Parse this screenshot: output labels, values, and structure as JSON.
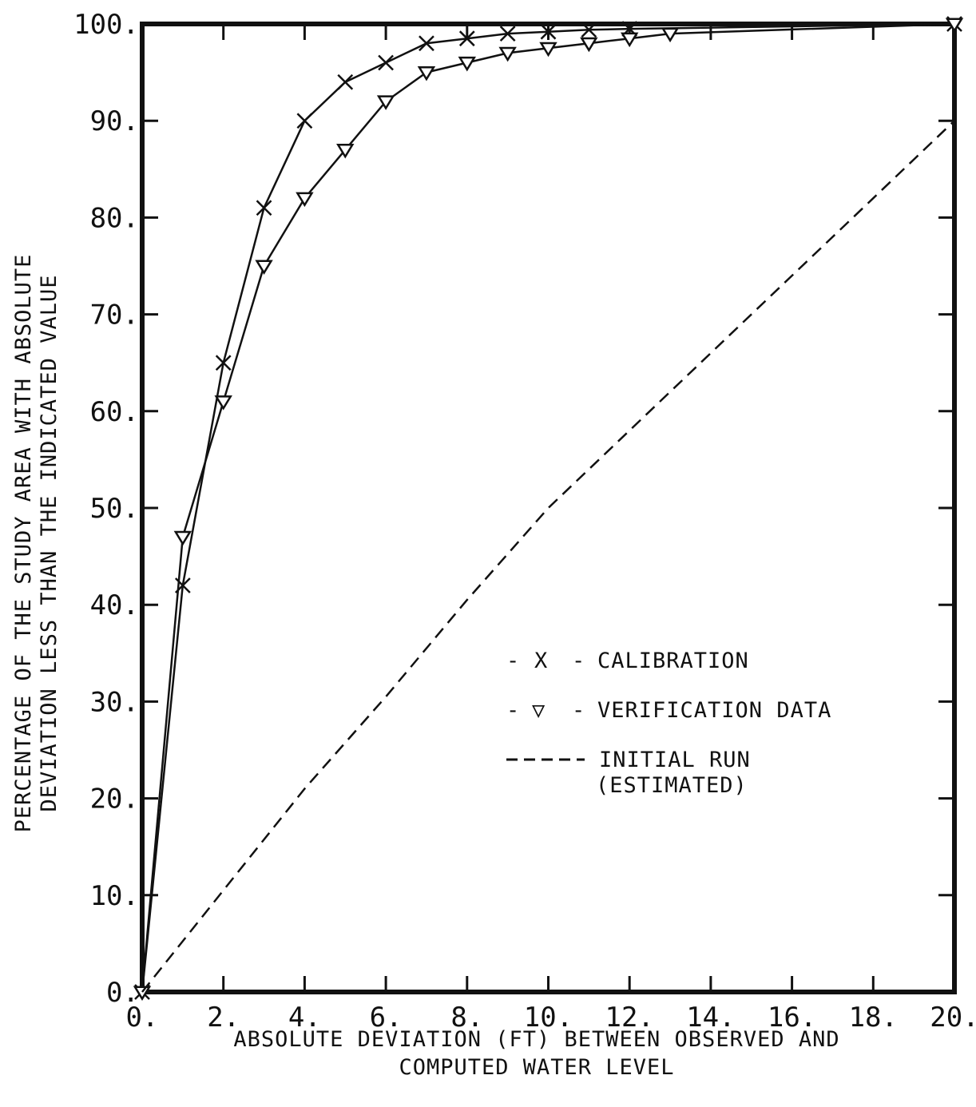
{
  "chart_data": {
    "type": "line",
    "title": "",
    "xlabel": [
      "ABSOLUTE DEVIATION (FT) BETWEEN OBSERVED AND",
      "COMPUTED WATER LEVEL"
    ],
    "ylabel": [
      "PERCENTAGE OF THE STUDY AREA WITH ABSOLUTE",
      "DEVIATION LESS THAN THE INDICATED VALUE"
    ],
    "xlim": [
      0,
      20
    ],
    "ylim": [
      0,
      100
    ],
    "x_ticks": [
      0,
      2,
      4,
      6,
      8,
      10,
      12,
      14,
      16,
      18,
      20
    ],
    "x_tick_labels": [
      "0.",
      "2.",
      "4.",
      "6.",
      "8.",
      "10.",
      "12.",
      "14.",
      "16.",
      "18.",
      "20."
    ],
    "y_ticks": [
      0,
      10,
      20,
      30,
      40,
      50,
      60,
      70,
      80,
      90,
      100
    ],
    "y_tick_labels": [
      "0.",
      "10.",
      "20.",
      "30.",
      "40.",
      "50.",
      "60.",
      "70.",
      "80.",
      "90.",
      "100."
    ],
    "grid": false,
    "legend_position": "center-right",
    "series": [
      {
        "name": "CALIBRATION",
        "marker": "x",
        "line": "solid",
        "x": [
          0,
          1,
          2,
          3,
          4,
          5,
          6,
          7,
          8,
          9,
          10,
          11,
          12,
          20
        ],
        "y": [
          0,
          42,
          65,
          81,
          90,
          94,
          96,
          98,
          98.5,
          99,
          99.2,
          99.4,
          99.5,
          100
        ]
      },
      {
        "name": "VERIFICATION DATA",
        "marker": "triangle-down",
        "line": "solid",
        "x": [
          0,
          1,
          2,
          3,
          4,
          5,
          6,
          7,
          8,
          9,
          10,
          11,
          12,
          13,
          20
        ],
        "y": [
          0,
          47,
          61,
          75,
          82,
          87,
          92,
          95,
          96,
          97,
          97.5,
          98,
          98.5,
          99,
          100
        ]
      },
      {
        "name": "INITIAL RUN (ESTIMATED)",
        "legend_lines": [
          "INITIAL RUN",
          "(ESTIMATED)"
        ],
        "marker": "none",
        "line": "dashed",
        "x": [
          0,
          2,
          4,
          6,
          8,
          10,
          12,
          14,
          16,
          18,
          20
        ],
        "y": [
          0,
          10.5,
          21,
          30.5,
          40.5,
          50,
          58,
          66,
          74,
          82,
          90
        ]
      }
    ],
    "legend": {
      "calibration": {
        "prefix": "-",
        "symbol": "X",
        "suffix": "-",
        "label": "CALIBRATION"
      },
      "verification": {
        "prefix": "-",
        "symbol": "▽",
        "suffix": "-",
        "label": "VERIFICATION DATA"
      },
      "initial": {
        "line1": "INITIAL RUN",
        "line2": "(ESTIMATED)"
      }
    }
  }
}
